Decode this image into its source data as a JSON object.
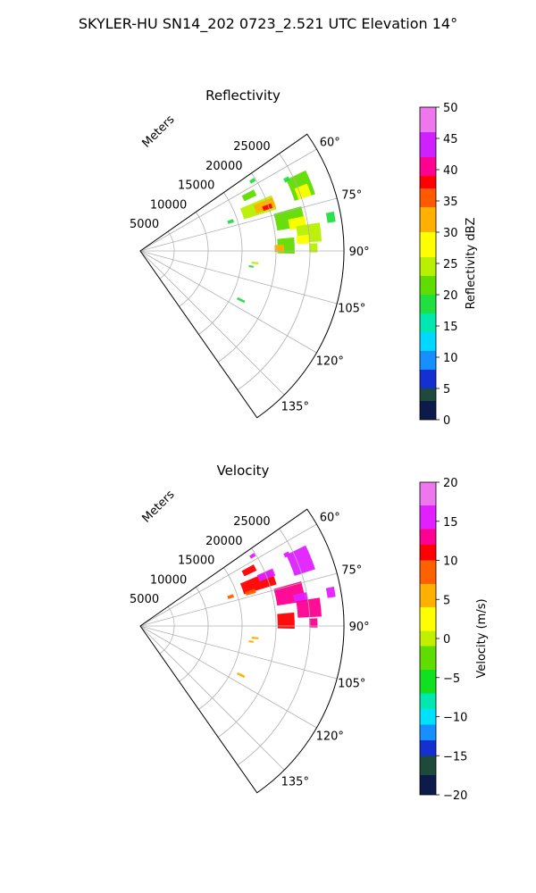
{
  "figure_title": "SKYLER-HU  SN14_202  0723_2.521 UTC Elevation 14°",
  "chart_data": [
    {
      "type": "polar-sector",
      "title": "Reflectivity",
      "radial_label": "Meters",
      "radial_ticks": [
        "5000",
        "10000",
        "15000",
        "20000",
        "25000"
      ],
      "radial_values": [
        5000,
        10000,
        15000,
        20000,
        25000
      ],
      "rmax": 30000,
      "azimuth_range": [
        55,
        145
      ],
      "angle_ticks": [
        "60°",
        "75°",
        "90°",
        "105°",
        "120°",
        "135°"
      ],
      "angle_values": [
        60,
        75,
        90,
        105,
        120,
        135
      ],
      "colorbar": {
        "label": "Reflectivity dBZ",
        "min": 0,
        "max": 50,
        "ticks": [
          "0",
          "5",
          "10",
          "15",
          "20",
          "25",
          "30",
          "35",
          "40",
          "45",
          "50"
        ],
        "tick_values": [
          0,
          5,
          10,
          15,
          20,
          25,
          30,
          35,
          40,
          45,
          50
        ],
        "stops": [
          {
            "v": 0,
            "c": "#0d1b4a"
          },
          {
            "v": 3,
            "c": "#1d4a3a"
          },
          {
            "v": 5,
            "c": "#1530d0"
          },
          {
            "v": 8,
            "c": "#1690ff"
          },
          {
            "v": 11,
            "c": "#00d8ff"
          },
          {
            "v": 14,
            "c": "#00e8b0"
          },
          {
            "v": 17,
            "c": "#20e040"
          },
          {
            "v": 20,
            "c": "#60dd00"
          },
          {
            "v": 23,
            "c": "#b8f000"
          },
          {
            "v": 26,
            "c": "#ffff00"
          },
          {
            "v": 30,
            "c": "#ffb000"
          },
          {
            "v": 34,
            "c": "#ff5a00"
          },
          {
            "v": 37,
            "c": "#ff0000"
          },
          {
            "v": 39,
            "c": "#ff0090"
          },
          {
            "v": 42,
            "c": "#d020ff"
          },
          {
            "v": 46,
            "c": "#ee77ee"
          },
          {
            "v": 50,
            "c": "#fde8fd"
          }
        ]
      },
      "cells": [
        {
          "az": 70,
          "r": 18500,
          "daz": 6,
          "dr": 5000,
          "v": 23
        },
        {
          "az": 70,
          "r": 19500,
          "daz": 4,
          "dr": 3000,
          "v": 32
        },
        {
          "az": 71,
          "r": 19800,
          "daz": 2,
          "dr": 1400,
          "v": 38
        },
        {
          "az": 63,
          "r": 18000,
          "daz": 3,
          "dr": 2000,
          "v": 22
        },
        {
          "az": 58,
          "r": 19500,
          "daz": 1.5,
          "dr": 800,
          "v": 19
        },
        {
          "az": 72,
          "r": 14000,
          "daz": 2,
          "dr": 900,
          "v": 18
        },
        {
          "az": 68,
          "r": 25500,
          "daz": 8,
          "dr": 3200,
          "v": 21
        },
        {
          "az": 70,
          "r": 25500,
          "daz": 4,
          "dr": 2000,
          "v": 26
        },
        {
          "az": 78,
          "r": 22500,
          "daz": 7,
          "dr": 4200,
          "v": 22
        },
        {
          "az": 80,
          "r": 23500,
          "daz": 4,
          "dr": 2500,
          "v": 28
        },
        {
          "az": 84,
          "r": 25000,
          "daz": 6,
          "dr": 3500,
          "v": 23
        },
        {
          "az": 86,
          "r": 24000,
          "daz": 3,
          "dr": 1800,
          "v": 29
        },
        {
          "az": 80,
          "r": 28500,
          "daz": 3,
          "dr": 1200,
          "v": 19
        },
        {
          "az": 88,
          "r": 21500,
          "daz": 6,
          "dr": 2500,
          "v": 22
        },
        {
          "az": 89,
          "r": 20500,
          "daz": 3,
          "dr": 1400,
          "v": 30
        },
        {
          "az": 89,
          "r": 25500,
          "daz": 3,
          "dr": 1200,
          "v": 24
        },
        {
          "az": 64,
          "r": 24000,
          "daz": 1.5,
          "dr": 800,
          "v": 19
        },
        {
          "az": 96,
          "r": 17000,
          "daz": 1,
          "dr": 1000,
          "v": 23
        },
        {
          "az": 98,
          "r": 16500,
          "daz": 1,
          "dr": 700,
          "v": 19
        },
        {
          "az": 116,
          "r": 16500,
          "daz": 1.2,
          "dr": 1200,
          "v": 19
        }
      ]
    },
    {
      "type": "polar-sector",
      "title": "Velocity",
      "radial_label": "Meters",
      "radial_ticks": [
        "5000",
        "10000",
        "15000",
        "20000",
        "25000"
      ],
      "radial_values": [
        5000,
        10000,
        15000,
        20000,
        25000
      ],
      "rmax": 30000,
      "azimuth_range": [
        55,
        145
      ],
      "angle_ticks": [
        "60°",
        "75°",
        "90°",
        "105°",
        "120°",
        "135°"
      ],
      "angle_values": [
        60,
        75,
        90,
        105,
        120,
        135
      ],
      "colorbar": {
        "label": "Velocity (m/s)",
        "min": -20,
        "max": 20,
        "ticks": [
          "−20",
          "−15",
          "−10",
          "−5",
          "0",
          "5",
          "10",
          "15",
          "20"
        ],
        "tick_values": [
          -20,
          -15,
          -10,
          -5,
          0,
          5,
          10,
          15,
          20
        ],
        "stops": [
          {
            "v": -20,
            "c": "#0d1b4a"
          },
          {
            "v": -17.5,
            "c": "#1d4a3a"
          },
          {
            "v": -15,
            "c": "#1530d0"
          },
          {
            "v": -13,
            "c": "#1690ff"
          },
          {
            "v": -11,
            "c": "#00e0ff"
          },
          {
            "v": -9,
            "c": "#00e8b0"
          },
          {
            "v": -7,
            "c": "#10e020"
          },
          {
            "v": -4,
            "c": "#60dd00"
          },
          {
            "v": -1,
            "c": "#c0f000"
          },
          {
            "v": 1,
            "c": "#ffff00"
          },
          {
            "v": 4,
            "c": "#ffb000"
          },
          {
            "v": 7,
            "c": "#ff6000"
          },
          {
            "v": 10,
            "c": "#ff0000"
          },
          {
            "v": 12,
            "c": "#ff0090"
          },
          {
            "v": 14,
            "c": "#e020ff"
          },
          {
            "v": 17,
            "c": "#ee77ee"
          },
          {
            "v": 20,
            "c": "#fde8fd"
          }
        ]
      },
      "cells": [
        {
          "az": 70,
          "r": 18500,
          "daz": 6,
          "dr": 5000,
          "v": 11
        },
        {
          "az": 68,
          "r": 20000,
          "daz": 3,
          "dr": 2500,
          "v": 15
        },
        {
          "az": 73,
          "r": 17000,
          "daz": 2,
          "dr": 1500,
          "v": 7
        },
        {
          "az": 63,
          "r": 18000,
          "daz": 3,
          "dr": 2000,
          "v": 11
        },
        {
          "az": 58,
          "r": 19500,
          "daz": 1.5,
          "dr": 800,
          "v": 15
        },
        {
          "az": 72,
          "r": 14000,
          "daz": 2,
          "dr": 900,
          "v": 8
        },
        {
          "az": 68,
          "r": 25500,
          "daz": 8,
          "dr": 3200,
          "v": 14
        },
        {
          "az": 78,
          "r": 22500,
          "daz": 7,
          "dr": 4200,
          "v": 12
        },
        {
          "az": 80,
          "r": 24000,
          "daz": 3,
          "dr": 2000,
          "v": 15
        },
        {
          "az": 84,
          "r": 25000,
          "daz": 6,
          "dr": 3500,
          "v": 13
        },
        {
          "az": 80,
          "r": 28500,
          "daz": 3,
          "dr": 1200,
          "v": 15
        },
        {
          "az": 88,
          "r": 21500,
          "daz": 6,
          "dr": 2500,
          "v": 11
        },
        {
          "az": 89,
          "r": 25500,
          "daz": 3,
          "dr": 1200,
          "v": 12
        },
        {
          "az": 64,
          "r": 24000,
          "daz": 1.5,
          "dr": 800,
          "v": 16
        },
        {
          "az": 96,
          "r": 17000,
          "daz": 1,
          "dr": 1000,
          "v": 6
        },
        {
          "az": 98,
          "r": 16500,
          "daz": 1,
          "dr": 700,
          "v": 5
        },
        {
          "az": 116,
          "r": 16500,
          "daz": 1.2,
          "dr": 1200,
          "v": 5
        }
      ]
    }
  ]
}
